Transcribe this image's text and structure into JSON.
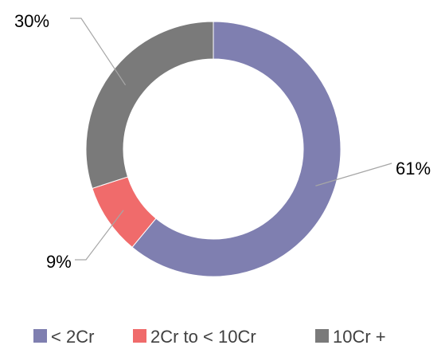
{
  "chart_data": {
    "type": "pie",
    "variant": "donut",
    "categories": [
      "< 2Cr",
      "2Cr to < 10Cr",
      "10Cr +"
    ],
    "values": [
      61,
      9,
      30
    ],
    "value_unit": "%",
    "data_labels": [
      "61%",
      "9%",
      "30%"
    ],
    "colors": [
      "#7f7fb0",
      "#f06b6b",
      "#7a7a7a"
    ],
    "legend": {
      "placement": "bottom",
      "entries": [
        "< 2Cr",
        "2Cr to < 10Cr",
        "10Cr +"
      ]
    },
    "start_angle": "12 o'clock",
    "direction": "clockwise"
  }
}
